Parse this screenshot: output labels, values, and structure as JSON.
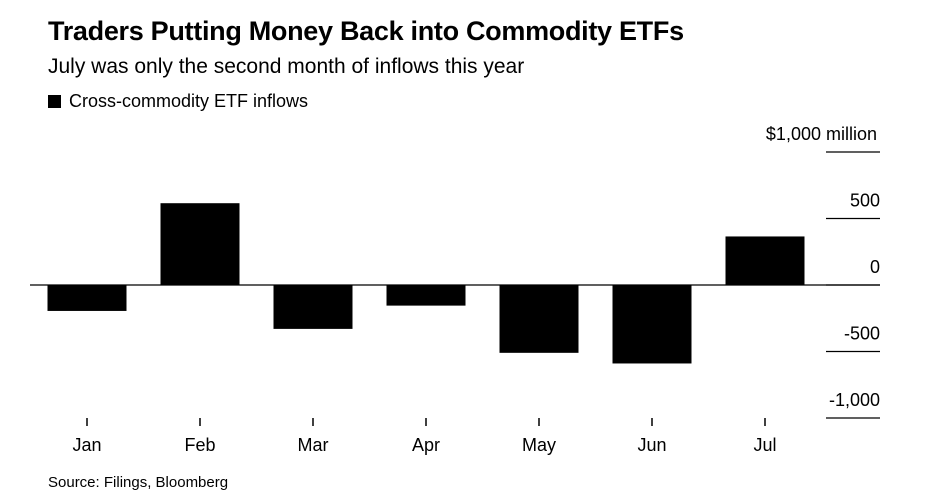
{
  "chart_data": {
    "type": "bar",
    "title": "Traders Putting Money Back into Commodity ETFs",
    "subtitle": "July was only the second month of inflows this year",
    "legend": "Cross-commodity ETF inflows",
    "series_color": "#000000",
    "categories": [
      "Jan",
      "Feb",
      "Mar",
      "Apr",
      "May",
      "Jun",
      "Jul"
    ],
    "values": [
      -195,
      615,
      -330,
      -155,
      -510,
      -590,
      365
    ],
    "y_unit_label": "$1,000 million",
    "y_ticks": [
      "500",
      "0",
      "-500",
      "-1,000"
    ],
    "ylim": [
      -1000,
      1000
    ],
    "source": "Source: Filings, Bloomberg"
  }
}
